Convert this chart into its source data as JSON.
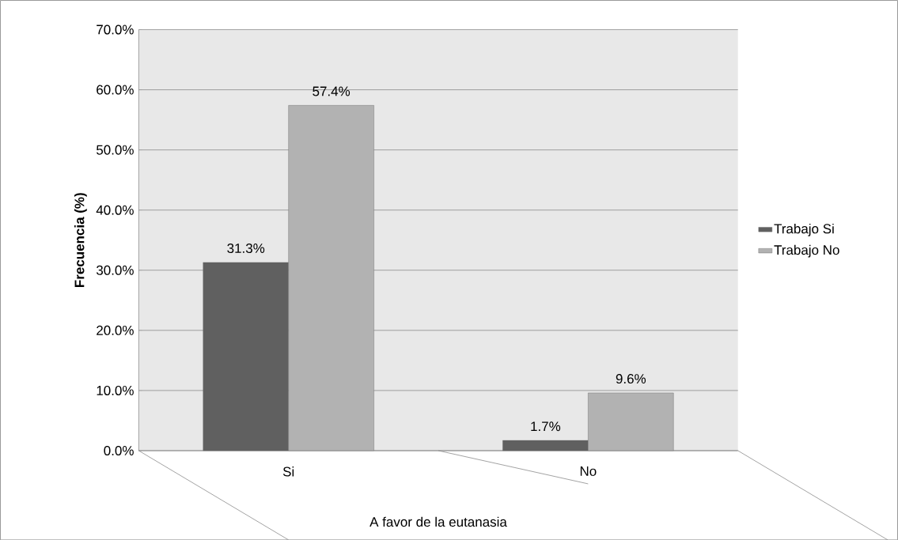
{
  "chart_data": {
    "type": "bar",
    "xlabel": "A favor de la eutanasia",
    "ylabel": "Frecuencia (%)",
    "categories": [
      "Si",
      "No"
    ],
    "series": [
      {
        "name": "Trabajo Si",
        "color": "#606060",
        "values": [
          31.3,
          1.7
        ],
        "value_labels": [
          "31.3%",
          "1.7%"
        ]
      },
      {
        "name": "Trabajo No",
        "color": "#b2b2b2",
        "values": [
          57.4,
          9.6
        ],
        "value_labels": [
          "57.4%",
          "9.6%"
        ]
      }
    ],
    "ylim": [
      0,
      70
    ],
    "yticks": [
      {
        "value": 0,
        "label": "0.0%"
      },
      {
        "value": 10,
        "label": "10.0%"
      },
      {
        "value": 20,
        "label": "20.0%"
      },
      {
        "value": 30,
        "label": "30.0%"
      },
      {
        "value": 40,
        "label": "40.0%"
      },
      {
        "value": 50,
        "label": "50.0%"
      },
      {
        "value": 60,
        "label": "60.0%"
      },
      {
        "value": 70,
        "label": "70.0%"
      }
    ],
    "grid": "y",
    "legend": "right"
  }
}
